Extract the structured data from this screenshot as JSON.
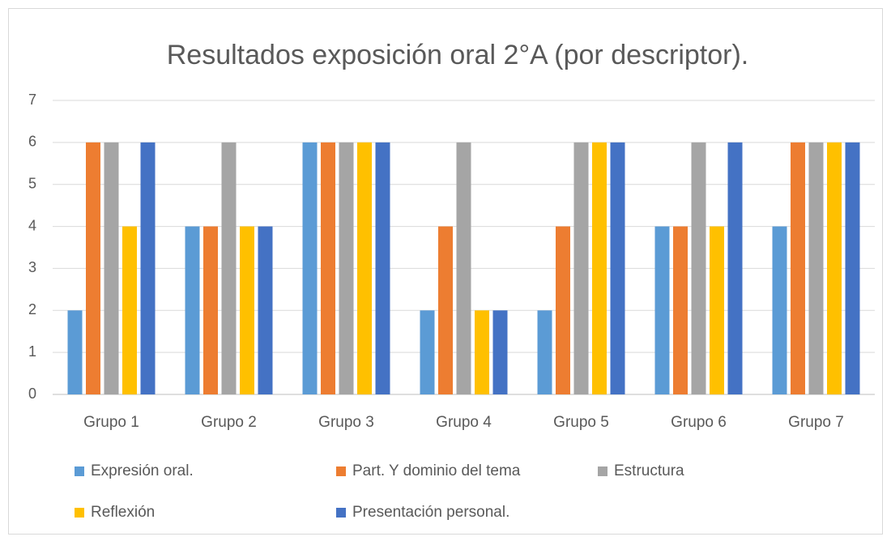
{
  "chart_data": {
    "type": "bar",
    "title": "Resultados exposición oral 2°A (por descriptor).",
    "categories": [
      "Grupo 1",
      "Grupo 2",
      "Grupo 3",
      "Grupo 4",
      "Grupo 5",
      "Grupo 6",
      "Grupo 7"
    ],
    "series": [
      {
        "name": "Expresión oral.",
        "color": "#5b9bd5",
        "values": [
          2,
          4,
          6,
          2,
          2,
          4,
          4
        ]
      },
      {
        "name": "Part. Y dominio del tema",
        "color": "#ed7d31",
        "values": [
          6,
          4,
          6,
          4,
          4,
          4,
          6
        ]
      },
      {
        "name": "Estructura",
        "color": "#a5a5a5",
        "values": [
          6,
          6,
          6,
          6,
          6,
          6,
          6
        ]
      },
      {
        "name": "Reflexión",
        "color": "#ffc000",
        "values": [
          4,
          4,
          6,
          2,
          6,
          4,
          6
        ]
      },
      {
        "name": "Presentación personal.",
        "color": "#4472c4",
        "values": [
          6,
          4,
          6,
          2,
          6,
          6,
          6
        ]
      }
    ],
    "ylim": [
      0,
      7
    ],
    "yticks": [
      0,
      1,
      2,
      3,
      4,
      5,
      6,
      7
    ],
    "grid": true,
    "legend": "bottom"
  }
}
